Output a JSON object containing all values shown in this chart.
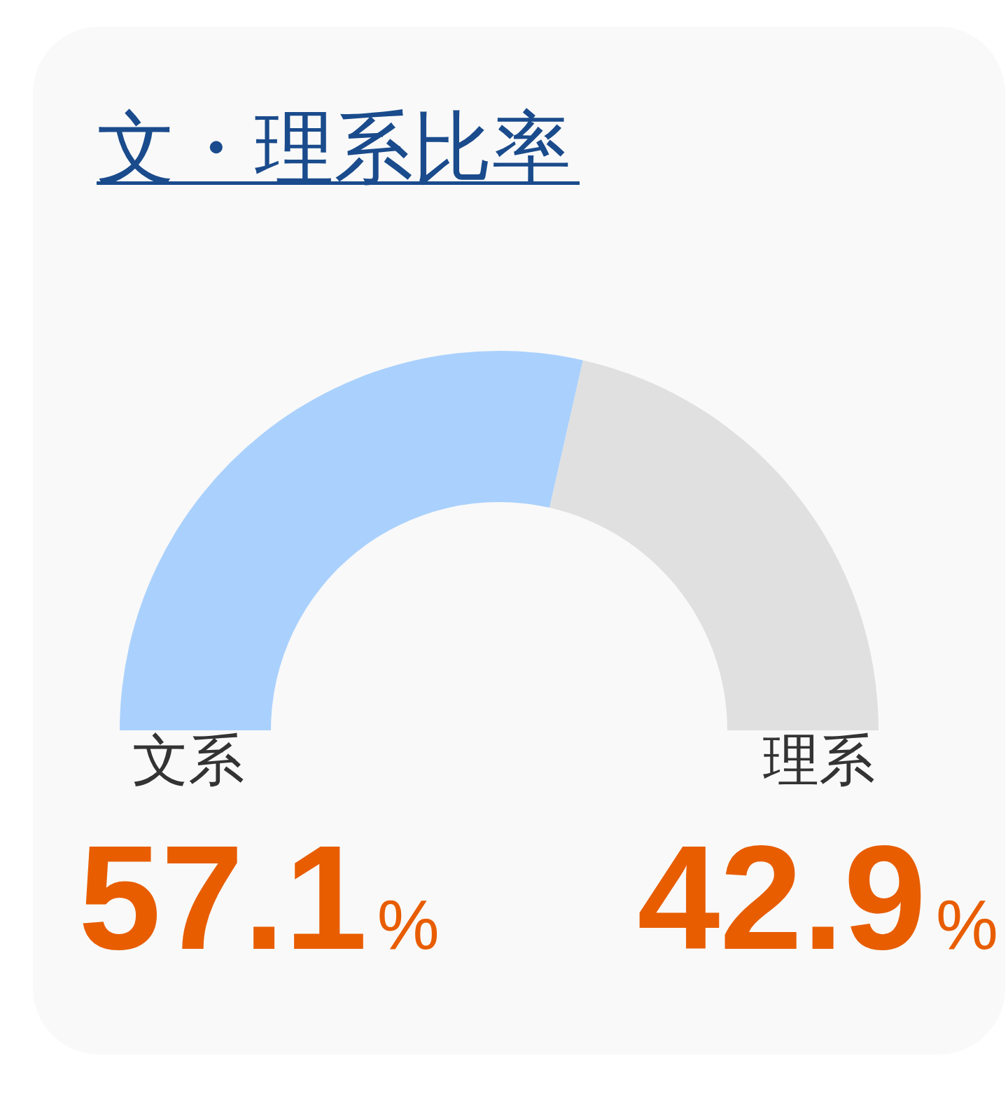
{
  "chart_data": {
    "type": "donut",
    "title": "文・理系比率",
    "categories": [
      "文系",
      "理系"
    ],
    "values": [
      57.1,
      42.9
    ],
    "colors": [
      "#aad1fd",
      "#e0e0e0"
    ],
    "value_labels": [
      "57.1%",
      "42.9%"
    ]
  }
}
